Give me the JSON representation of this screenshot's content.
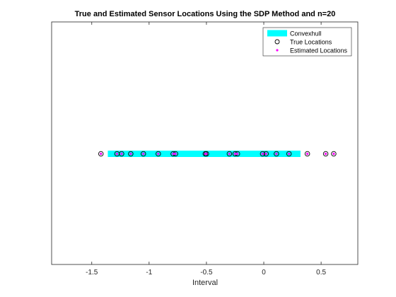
{
  "chart_data": {
    "type": "scatter",
    "title": "True and Estimated Sensor Locations Using the SDP Method and n=20",
    "xlabel": "Interval",
    "ylabel": "",
    "xlim": [
      -1.85,
      0.82
    ],
    "xticks": [
      -1.5,
      -1,
      -0.5,
      0,
      0.5
    ],
    "xtick_labels": [
      "-1.5",
      "-1",
      "-0.5",
      "0",
      "0.5"
    ],
    "yticks_visible": false,
    "grid": false,
    "legend_position": "top-right",
    "legend": [
      {
        "label": "Convexhull",
        "color": "#00FFFF",
        "marker": "line"
      },
      {
        "label": "True Locations",
        "color": "#000000",
        "marker": "circle"
      },
      {
        "label": "Estimated Locations",
        "color": "#FF00FF",
        "marker": "point"
      }
    ],
    "convex_hull": {
      "name": "Convexhull",
      "x_range": [
        -1.36,
        0.32
      ],
      "color": "#00FFFF"
    },
    "true_locations": {
      "name": "True Locations",
      "color": "#000000",
      "x": [
        -1.42,
        -1.28,
        -1.24,
        -1.16,
        -1.05,
        -0.92,
        -0.79,
        -0.77,
        -0.51,
        -0.5,
        -0.3,
        -0.25,
        -0.23,
        -0.01,
        0.02,
        0.11,
        0.22,
        0.38,
        0.54,
        0.61
      ]
    },
    "estimated_locations": {
      "name": "Estimated Locations",
      "color": "#FF00FF",
      "x": [
        -1.42,
        -1.28,
        -1.24,
        -1.16,
        -1.05,
        -0.92,
        -0.79,
        -0.77,
        -0.51,
        -0.5,
        -0.3,
        -0.25,
        -0.23,
        -0.01,
        0.02,
        0.11,
        0.22,
        0.38,
        0.54,
        0.61
      ]
    }
  }
}
